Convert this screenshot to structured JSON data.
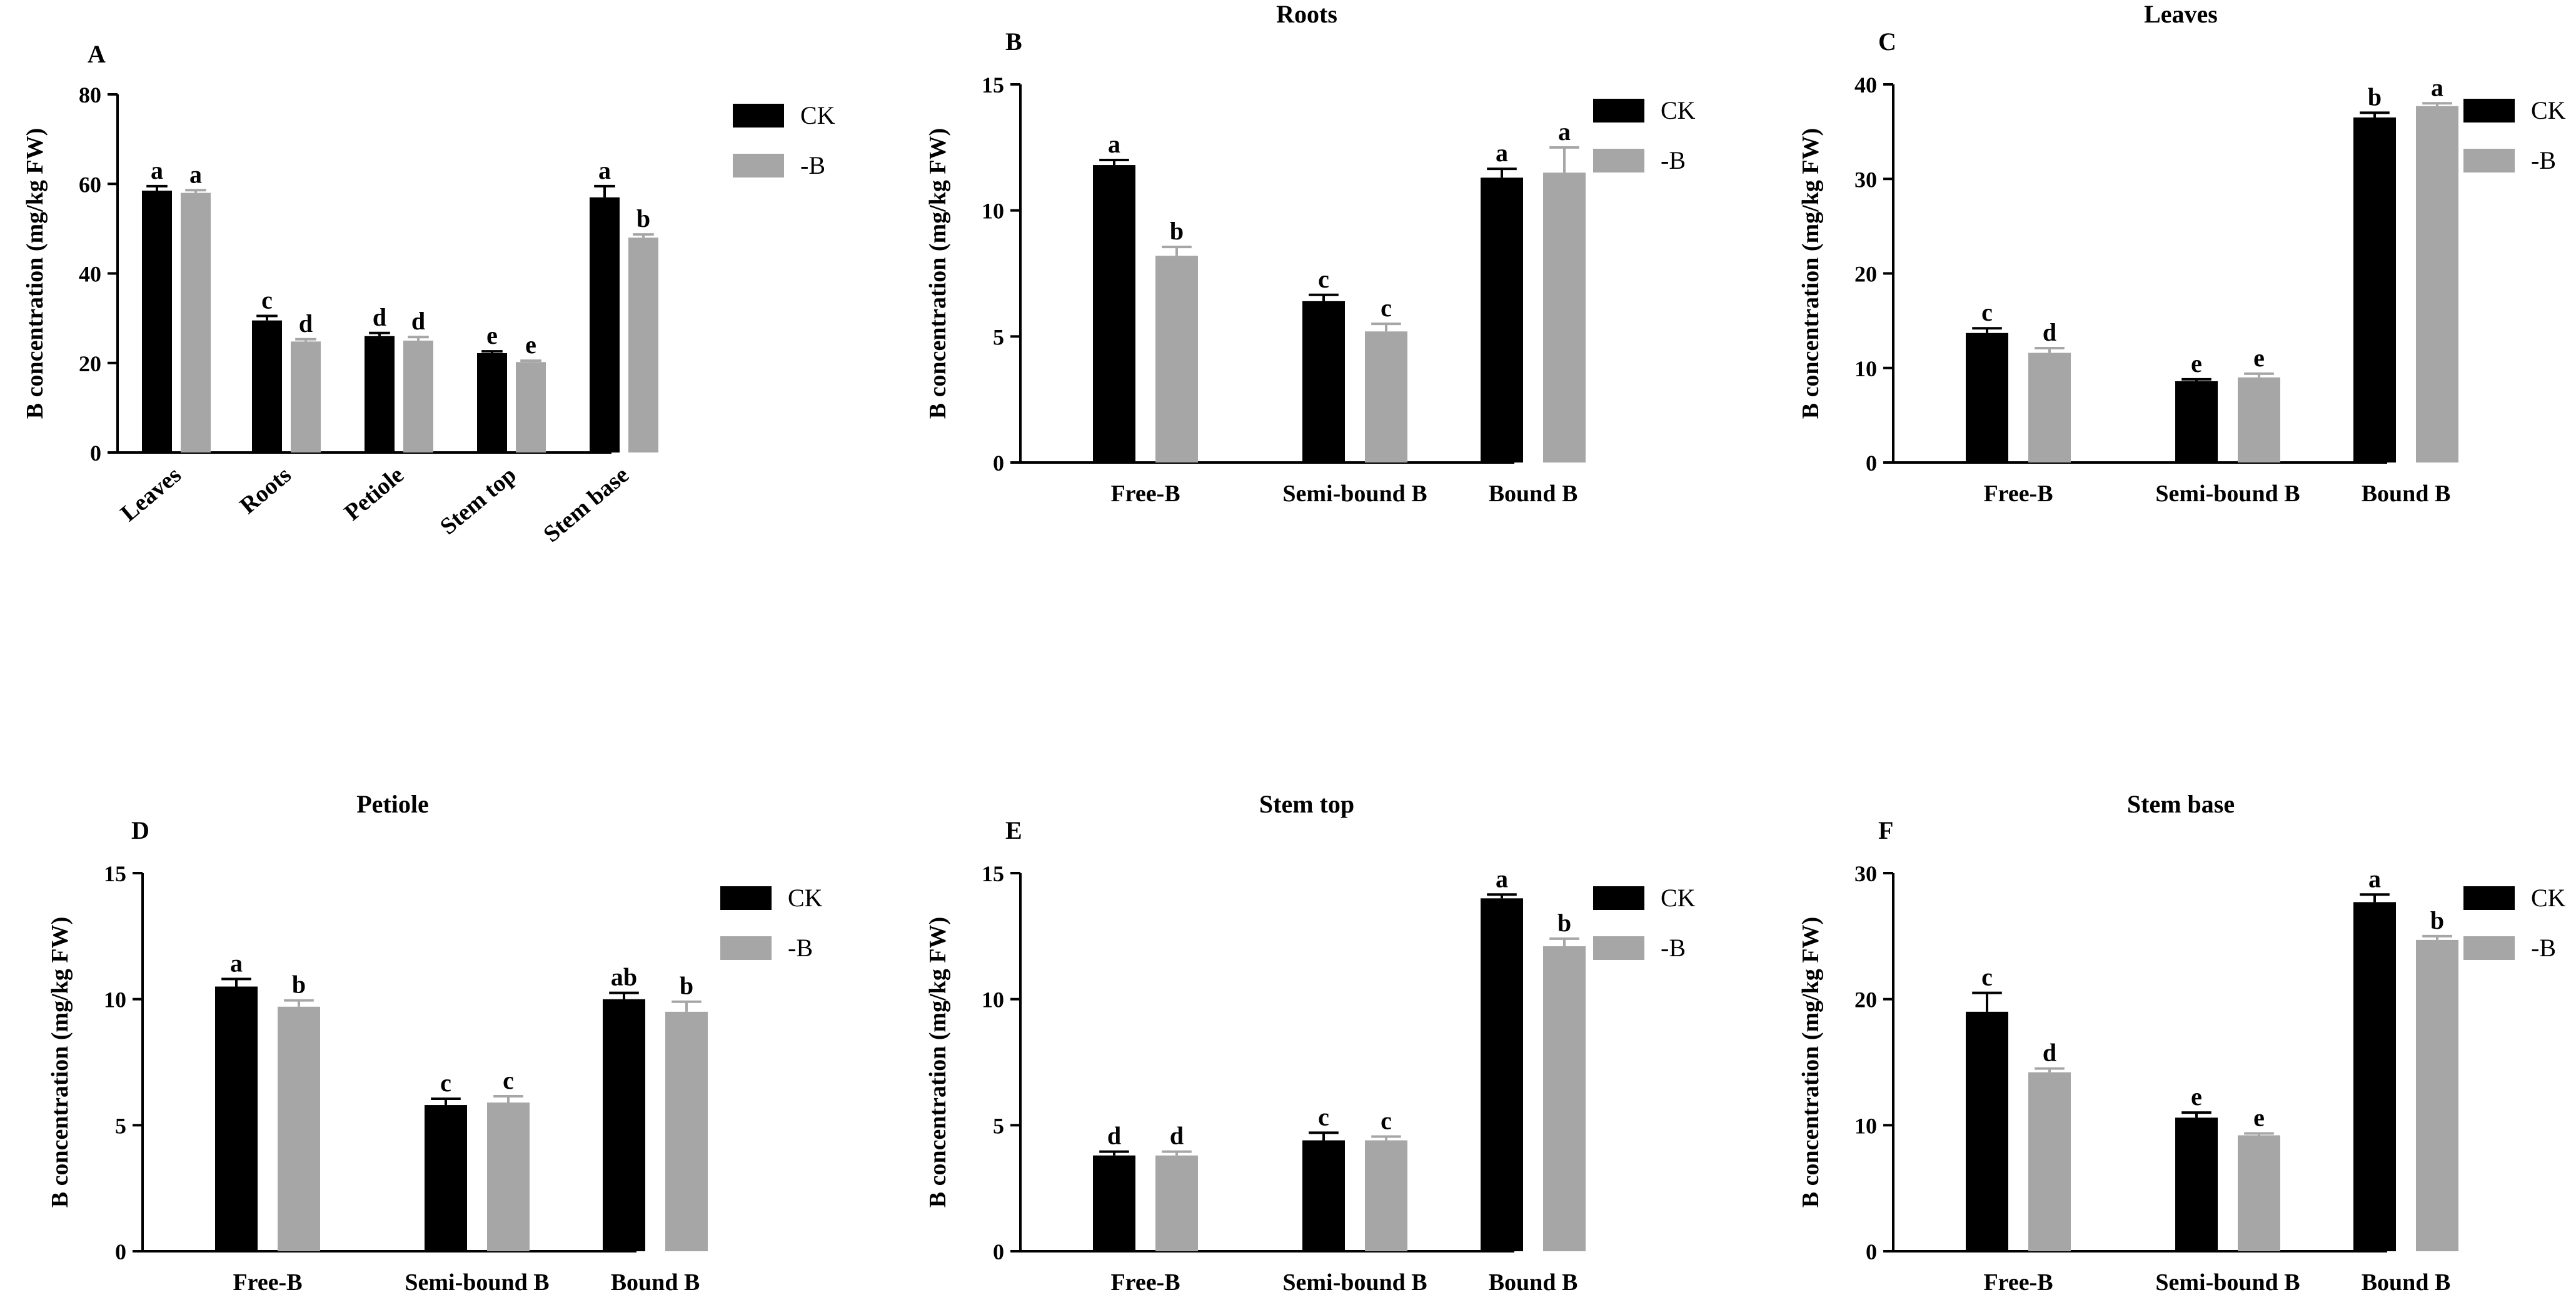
{
  "colors": {
    "ck": "#000000",
    "minus_b": "#a6a6a6",
    "axis": "#000000"
  },
  "chart_data": [
    {
      "panel": "A",
      "title": "",
      "type": "bar",
      "ylabel": "B concentration (mg/kg FW)",
      "xlabel": "",
      "ylim": [
        0,
        80
      ],
      "yticks": [
        "0",
        "20",
        "40",
        "60",
        "80"
      ],
      "ytick_values": [
        0,
        20,
        40,
        60,
        80
      ],
      "xtick_rotation": -40,
      "categories": [
        "Leaves",
        "Roots",
        "Petiole",
        "Stem top",
        "Stem base"
      ],
      "legend": [
        "CK",
        "-B"
      ],
      "series": [
        {
          "name": "CK",
          "values": [
            58.5,
            29.5,
            26.0,
            22.2,
            57.0
          ],
          "errors": [
            1.0,
            1.0,
            0.7,
            0.4,
            2.5
          ],
          "labels": [
            "a",
            "c",
            "d",
            "e",
            "a"
          ]
        },
        {
          "name": "-B",
          "values": [
            58.0,
            24.8,
            25.0,
            20.2,
            48.0
          ],
          "errors": [
            0.6,
            0.5,
            0.8,
            0.3,
            0.7
          ],
          "labels": [
            "a",
            "d",
            "d",
            "e",
            "b"
          ]
        }
      ]
    },
    {
      "panel": "B",
      "title": "Roots",
      "type": "bar",
      "ylabel": "B concentration (mg/kg FW)",
      "xlabel": "",
      "ylim": [
        0,
        15
      ],
      "yticks": [
        "0",
        "5",
        "10",
        "15"
      ],
      "ytick_values": [
        0,
        5,
        10,
        15
      ],
      "xtick_rotation": 0,
      "categories": [
        "Free-B",
        "Semi-bound B",
        "Bound B"
      ],
      "legend": [
        "CK",
        "-B"
      ],
      "series": [
        {
          "name": "CK",
          "values": [
            11.8,
            6.4,
            11.3
          ],
          "errors": [
            0.2,
            0.25,
            0.35
          ],
          "labels": [
            "a",
            "c",
            "a"
          ]
        },
        {
          "name": "-B",
          "values": [
            8.2,
            5.2,
            11.5
          ],
          "errors": [
            0.35,
            0.3,
            1.0
          ],
          "labels": [
            "b",
            "c",
            "a"
          ]
        }
      ]
    },
    {
      "panel": "C",
      "title": "Leaves",
      "type": "bar",
      "ylabel": "B concentration (mg/kg FW)",
      "xlabel": "",
      "ylim": [
        0,
        40
      ],
      "yticks": [
        "0",
        "10",
        "20",
        "30",
        "40"
      ],
      "ytick_values": [
        0,
        10,
        20,
        30,
        40
      ],
      "xtick_rotation": 0,
      "categories": [
        "Free-B",
        "Semi-bound B",
        "Bound B"
      ],
      "legend": [
        "CK",
        "-B"
      ],
      "series": [
        {
          "name": "CK",
          "values": [
            13.7,
            8.6,
            36.5
          ],
          "errors": [
            0.5,
            0.2,
            0.5
          ],
          "labels": [
            "c",
            "e",
            "b"
          ]
        },
        {
          "name": "-B",
          "values": [
            11.6,
            9.0,
            37.7
          ],
          "errors": [
            0.5,
            0.4,
            0.3
          ],
          "labels": [
            "d",
            "e",
            "a"
          ]
        }
      ]
    },
    {
      "panel": "D",
      "title": "Petiole",
      "type": "bar",
      "ylabel": "B concentration (mg/kg FW)",
      "xlabel": "",
      "ylim": [
        0,
        15
      ],
      "yticks": [
        "0",
        "5",
        "10",
        "15"
      ],
      "ytick_values": [
        0,
        5,
        10,
        15
      ],
      "xtick_rotation": 0,
      "categories": [
        "Free-B",
        "Semi-bound B",
        "Bound B"
      ],
      "legend": [
        "CK",
        "-B"
      ],
      "series": [
        {
          "name": "CK",
          "values": [
            10.5,
            5.8,
            10.0
          ],
          "errors": [
            0.3,
            0.25,
            0.25
          ],
          "labels": [
            "a",
            "c",
            "ab"
          ]
        },
        {
          "name": "-B",
          "values": [
            9.7,
            5.9,
            9.5
          ],
          "errors": [
            0.25,
            0.25,
            0.4
          ],
          "labels": [
            "b",
            "c",
            "b"
          ]
        }
      ]
    },
    {
      "panel": "E",
      "title": "Stem top",
      "type": "bar",
      "ylabel": "B concentration (mg/kg FW)",
      "xlabel": "",
      "ylim": [
        0,
        15
      ],
      "yticks": [
        "0",
        "5",
        "10",
        "15"
      ],
      "ytick_values": [
        0,
        5,
        10,
        15
      ],
      "xtick_rotation": 0,
      "categories": [
        "Free-B",
        "Semi-bound B",
        "Bound B"
      ],
      "legend": [
        "CK",
        "-B"
      ],
      "series": [
        {
          "name": "CK",
          "values": [
            3.8,
            4.4,
            14.0
          ],
          "errors": [
            0.15,
            0.3,
            0.15
          ],
          "labels": [
            "d",
            "c",
            "a"
          ]
        },
        {
          "name": "-B",
          "values": [
            3.8,
            4.4,
            12.1
          ],
          "errors": [
            0.15,
            0.15,
            0.3
          ],
          "labels": [
            "d",
            "c",
            "b"
          ]
        }
      ]
    },
    {
      "panel": "F",
      "title": "Stem base",
      "type": "bar",
      "ylabel": "B concentration (mg/kg FW)",
      "xlabel": "",
      "ylim": [
        0,
        30
      ],
      "yticks": [
        "0",
        "10",
        "20",
        "30"
      ],
      "ytick_values": [
        0,
        10,
        20,
        30
      ],
      "xtick_rotation": 0,
      "categories": [
        "Free-B",
        "Semi-bound B",
        "Bound B"
      ],
      "legend": [
        "CK",
        "-B"
      ],
      "series": [
        {
          "name": "CK",
          "values": [
            19.0,
            10.6,
            27.7
          ],
          "errors": [
            1.5,
            0.4,
            0.6
          ],
          "labels": [
            "c",
            "e",
            "a"
          ]
        },
        {
          "name": "-B",
          "values": [
            14.2,
            9.2,
            24.7
          ],
          "errors": [
            0.3,
            0.15,
            0.3
          ],
          "labels": [
            "d",
            "e",
            "b"
          ]
        }
      ]
    }
  ]
}
